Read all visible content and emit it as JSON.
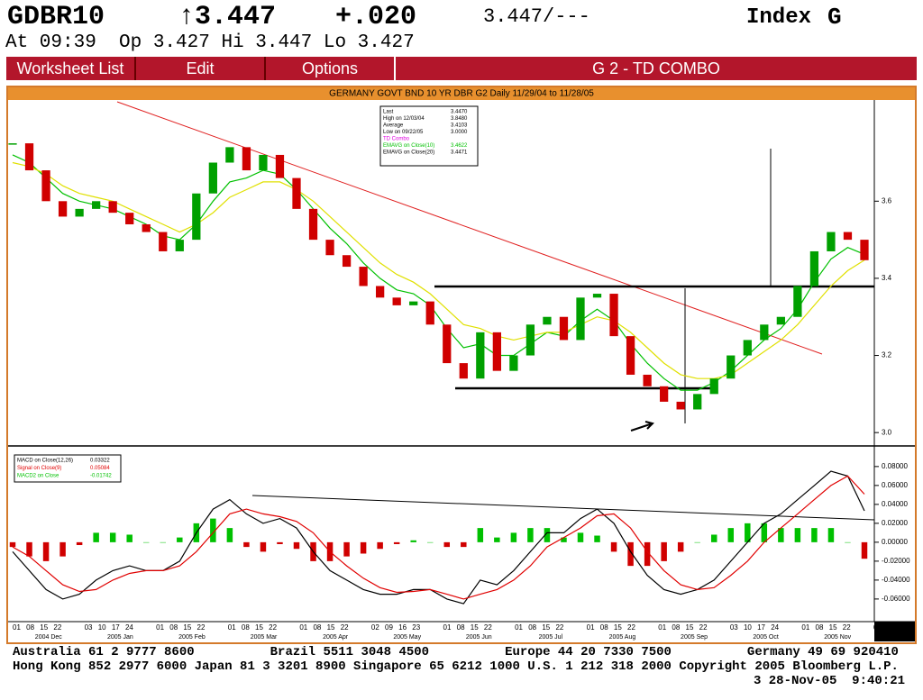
{
  "header": {
    "ticker": "GDBR10",
    "last": "↑3.447",
    "change": "+.020",
    "bid_ask": "3.447/---",
    "market": "Index",
    "key": "G",
    "quote_line": "At 09:39  Op 3.427 Hi 3.447 Lo 3.427"
  },
  "menu": {
    "items": [
      "Worksheet List",
      "Edit",
      "Options"
    ],
    "page_title": "G 2 - TD COMBO"
  },
  "footer": {
    "lines": [
      "Australia 61 2 9777 8600          Brazil 5511 3048 4500          Europe 44 20 7330 7500          Germany 49 69 920410",
      "Hong Kong 852 2977 6000 Japan 81 3 3201 8900 Singapore 65 6212 1000 U.S. 1 212 318 2000 Copyright 2005 Bloomberg L.P.",
      "3 28-Nov-05  9:40:21"
    ]
  },
  "chart_data": [
    {
      "type": "candlestick",
      "title": "GERMANY GOVT BND 10 YR DBR G2 Daily 11/29/04 to 11/28/05",
      "up_color": "#00a000",
      "down_color": "#d00000",
      "series": [
        {
          "name": "Close",
          "color": "#000000",
          "values": [
            3.75,
            3.68,
            3.6,
            3.56,
            3.58,
            3.6,
            3.57,
            3.54,
            3.52,
            3.47,
            3.5,
            3.62,
            3.7,
            3.74,
            3.68,
            3.72,
            3.66,
            3.58,
            3.5,
            3.46,
            3.43,
            3.38,
            3.35,
            3.33,
            3.34,
            3.28,
            3.18,
            3.14,
            3.26,
            3.16,
            3.2,
            3.28,
            3.3,
            3.24,
            3.35,
            3.36,
            3.25,
            3.15,
            3.12,
            3.08,
            3.06,
            3.1,
            3.14,
            3.2,
            3.24,
            3.28,
            3.3,
            3.38,
            3.47,
            3.52,
            3.5,
            3.447
          ]
        },
        {
          "name": "EMAVG on Close(10)",
          "color": "#00c000",
          "values": [
            3.72,
            3.7,
            3.66,
            3.62,
            3.6,
            3.59,
            3.58,
            3.56,
            3.54,
            3.51,
            3.5,
            3.54,
            3.6,
            3.65,
            3.66,
            3.68,
            3.67,
            3.63,
            3.58,
            3.53,
            3.49,
            3.44,
            3.4,
            3.37,
            3.36,
            3.33,
            3.27,
            3.22,
            3.23,
            3.2,
            3.2,
            3.23,
            3.26,
            3.25,
            3.29,
            3.32,
            3.29,
            3.23,
            3.18,
            3.14,
            3.11,
            3.11,
            3.13,
            3.16,
            3.2,
            3.24,
            3.27,
            3.32,
            3.39,
            3.45,
            3.48,
            3.4622
          ]
        },
        {
          "name": "EMAVG on Close(20)",
          "color": "#e0e000",
          "values": [
            3.7,
            3.69,
            3.67,
            3.64,
            3.62,
            3.61,
            3.6,
            3.58,
            3.56,
            3.54,
            3.52,
            3.54,
            3.57,
            3.61,
            3.63,
            3.65,
            3.65,
            3.63,
            3.6,
            3.56,
            3.52,
            3.48,
            3.44,
            3.41,
            3.39,
            3.36,
            3.32,
            3.28,
            3.27,
            3.25,
            3.24,
            3.25,
            3.26,
            3.26,
            3.28,
            3.3,
            3.29,
            3.26,
            3.22,
            3.18,
            3.15,
            3.14,
            3.14,
            3.15,
            3.18,
            3.21,
            3.24,
            3.28,
            3.33,
            3.38,
            3.42,
            3.4471
          ]
        }
      ],
      "info": [
        [
          "Last",
          "3.4470"
        ],
        [
          "High on  12/03/04",
          "3.8480"
        ],
        [
          "Average",
          "3.4103"
        ],
        [
          "Low on  09/22/05",
          "3.0000"
        ]
      ],
      "study_name": "TD Combo",
      "study_color": "#e000e0",
      "ylim": [
        2.97,
        3.86
      ],
      "yticks": [
        {
          "value": 3,
          "label": "3.0"
        },
        3.2,
        3.4,
        3.6
      ],
      "month_labels": [
        "2004 Dec",
        "2005 Jan",
        "2005 Feb",
        "2005 Mar",
        "2005 Apr",
        "2005 May",
        "2005 Jun",
        "2005 Jul",
        "2005 Aug",
        "2005 Sep",
        "2005 Oct",
        "2005 Nov"
      ],
      "day_labels": [
        "01 08 15 22",
        "03 10 17 24",
        "01 08 15 22",
        "01 08 15 22",
        "01 08 15 22",
        "02 09 16 23",
        "01 08 15 22",
        "01 08 15 22",
        "01 08 15 22",
        "01 08 15 22",
        "03 10 17 24",
        "01 08 15 22",
        "01"
      ]
    },
    {
      "type": "macd",
      "series": [
        {
          "name": "MACD on Close(12,26)",
          "color": "#000000",
          "values": [
            -0.01,
            -0.03,
            -0.05,
            -0.06,
            -0.055,
            -0.04,
            -0.03,
            -0.025,
            -0.03,
            -0.03,
            -0.02,
            0.01,
            0.035,
            0.045,
            0.03,
            0.02,
            0.025,
            0.015,
            -0.01,
            -0.03,
            -0.04,
            -0.05,
            -0.055,
            -0.055,
            -0.05,
            -0.05,
            -0.06,
            -0.065,
            -0.04,
            -0.045,
            -0.03,
            -0.01,
            0.01,
            0.01,
            0.025,
            0.035,
            0.02,
            -0.01,
            -0.035,
            -0.05,
            -0.055,
            -0.05,
            -0.04,
            -0.02,
            0.0,
            0.02,
            0.03,
            0.045,
            0.06,
            0.075,
            0.07,
            0.03322
          ]
        },
        {
          "name": "Signal on Close(9)",
          "color": "#e00000",
          "values": [
            -0.005,
            -0.015,
            -0.03,
            -0.045,
            -0.052,
            -0.05,
            -0.04,
            -0.033,
            -0.03,
            -0.03,
            -0.025,
            -0.01,
            0.01,
            0.03,
            0.035,
            0.03,
            0.027,
            0.022,
            0.01,
            -0.01,
            -0.025,
            -0.038,
            -0.048,
            -0.053,
            -0.052,
            -0.05,
            -0.055,
            -0.06,
            -0.055,
            -0.05,
            -0.04,
            -0.025,
            -0.005,
            0.005,
            0.015,
            0.028,
            0.03,
            0.015,
            -0.01,
            -0.03,
            -0.045,
            -0.05,
            -0.048,
            -0.035,
            -0.02,
            0.0,
            0.015,
            0.03,
            0.045,
            0.06,
            0.07,
            0.05084
          ]
        },
        {
          "name": "MACD2 on Close",
          "color": "#00c000",
          "values": [
            -0.005,
            -0.015,
            -0.02,
            -0.015,
            -0.003,
            0.01,
            0.01,
            0.008,
            0,
            0,
            0.005,
            0.02,
            0.025,
            0.015,
            -0.005,
            -0.01,
            -0.002,
            -0.007,
            -0.02,
            -0.02,
            -0.015,
            -0.012,
            -0.007,
            -0.002,
            0.002,
            0,
            -0.005,
            -0.005,
            0.015,
            0.005,
            0.01,
            0.015,
            0.015,
            0.005,
            0.01,
            0.007,
            -0.01,
            -0.025,
            -0.025,
            -0.02,
            -0.01,
            0,
            0.008,
            0.015,
            0.02,
            0.02,
            0.015,
            0.015,
            0.015,
            0.015,
            0,
            -0.01742
          ]
        }
      ],
      "down_color": "#d00000",
      "value_labels": [
        "0.03322",
        "0.05084",
        "-0.01742"
      ],
      "ylim": [
        -0.082,
        0.097
      ],
      "yticks": [
        {
          "value": 0.08,
          "label": "0.08000"
        },
        {
          "value": 0.06,
          "label": "0.06000"
        },
        {
          "value": 0.04,
          "label": "0.04000"
        },
        {
          "value": 0.02,
          "label": "0.02000"
        },
        {
          "value": 0,
          "label": "0.00000"
        },
        {
          "value": -0.02,
          "label": "-0.02000"
        },
        {
          "value": -0.04,
          "label": "-0.04000"
        },
        {
          "value": -0.06,
          "label": "-0.06000"
        }
      ]
    }
  ]
}
